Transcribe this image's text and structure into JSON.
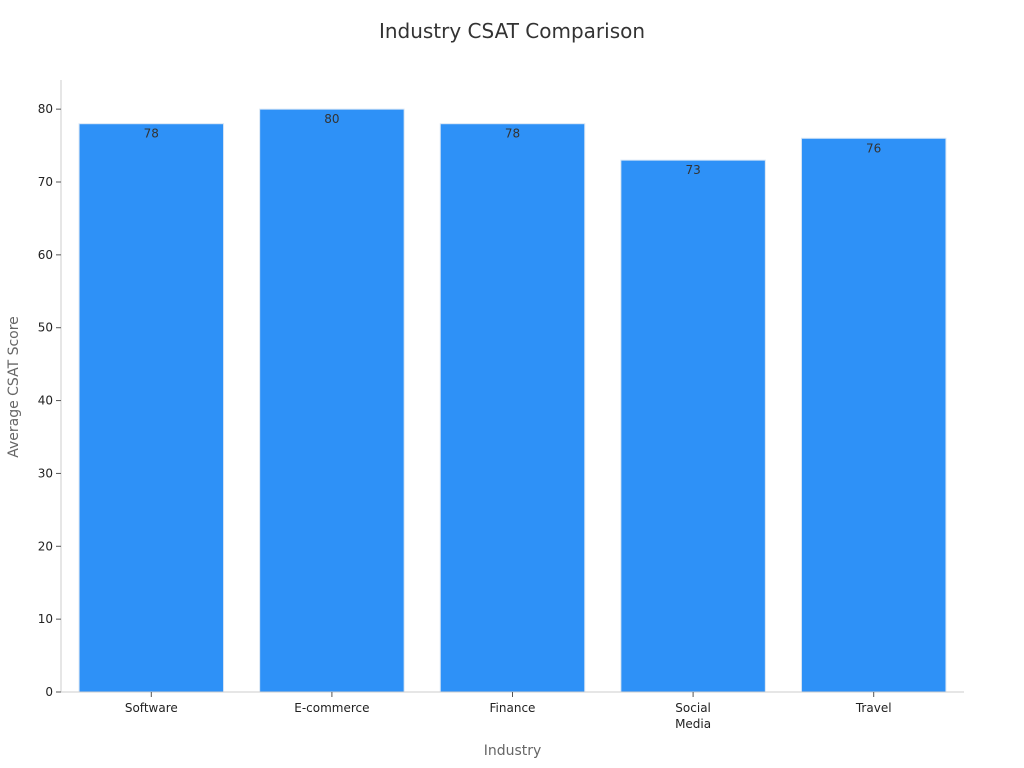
{
  "chart_data": {
    "type": "bar",
    "title": "Industry CSAT Comparison",
    "xlabel": "Industry",
    "ylabel": "Average CSAT Score",
    "categories": [
      [
        "Software"
      ],
      [
        "E-commerce"
      ],
      [
        "Finance"
      ],
      [
        "Social",
        "Media"
      ],
      [
        "Travel"
      ]
    ],
    "values": [
      78,
      80,
      78,
      73,
      76
    ],
    "data_labels": [
      "78",
      "80",
      "78",
      "73",
      "76"
    ],
    "ylim": [
      0,
      84
    ],
    "yticks": [
      0,
      10,
      20,
      30,
      40,
      50,
      60,
      70,
      80
    ],
    "ytick_labels": [
      "0",
      "10",
      "20",
      "30",
      "40",
      "50",
      "60",
      "70",
      "80"
    ],
    "grid": false,
    "legend": "none",
    "colors": {
      "bar_fill": "#2E91F7",
      "bar_edge": "#D8E6F5",
      "axis": "#CCCCCC",
      "tick_mark": "#555555"
    }
  }
}
